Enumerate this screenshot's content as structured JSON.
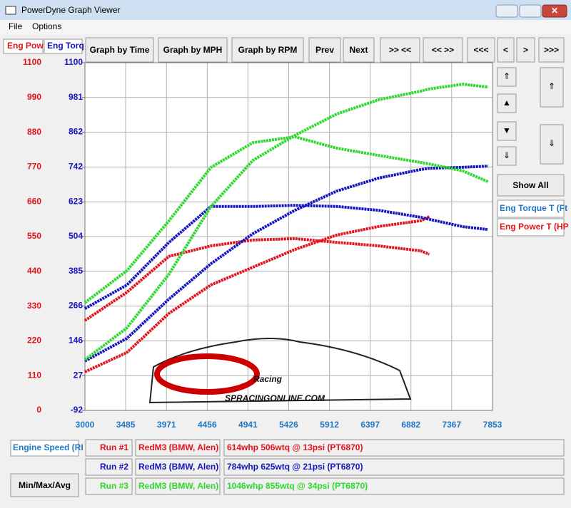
{
  "window_title": "PowerDyne Graph Viewer",
  "menu": [
    "File",
    "Options"
  ],
  "toolbar": [
    "Graph by Time",
    "Graph by MPH",
    "Graph by RPM",
    "Prev",
    "Next",
    ">> <<",
    "<< >>",
    "<<<",
    "<",
    ">",
    ">>>"
  ],
  "axis_tabs": [
    "Eng Pow",
    "Eng Torq"
  ],
  "side_panel": {
    "show_all": "Show All",
    "channels": [
      "Eng Torque T (Ft",
      "Eng Power T (HP"
    ]
  },
  "bottom": {
    "x_channel": "Engine Speed (RI",
    "min_max_button": "Min/Max/Avg",
    "runs": [
      {
        "label": "Run #1",
        "car": "RedM3 (BMW, Alen)",
        "result": "614whp 506wtq @ 13psi (PT6870)",
        "color": "#e3131b"
      },
      {
        "label": "Run #2",
        "car": "RedM3 (BMW, Alen)",
        "result": "784whp 625wtq @ 21psi (PT6870)",
        "color": "#1515c0"
      },
      {
        "label": "Run #3",
        "car": "RedM3 (BMW, Alen)",
        "result": "1046whp 855wtq @ 34psi (PT6870)",
        "color": "#2ed82e"
      }
    ]
  },
  "watermark": [
    "Racing",
    "SPRACINGONLINE.COM"
  ],
  "chart_data": {
    "type": "line",
    "x": [
      3000,
      3500,
      4000,
      4500,
      5000,
      5500,
      6000,
      6500,
      7000,
      7100,
      7500,
      7800
    ],
    "xlim": [
      3000,
      7853
    ],
    "xticks": [
      3000,
      3485,
      3971,
      4456,
      4941,
      5426,
      5912,
      6397,
      6882,
      7367,
      7853
    ],
    "ylim": [
      0,
      1100
    ],
    "yticks": [
      0,
      110,
      220,
      330,
      440,
      550,
      660,
      770,
      880,
      990,
      1100
    ],
    "y2lim": [
      -92,
      1100
    ],
    "y2ticks": [
      -92,
      27,
      146,
      266,
      385,
      504,
      623,
      742,
      862,
      981,
      1100
    ],
    "grid": true,
    "series": [
      {
        "color": "#e3131b",
        "values": [
          122,
          183,
          307,
          397,
          453,
          509,
          555,
          582,
          600,
          613,
          null,
          null
        ]
      },
      {
        "color": "#e3131b",
        "axis": "y2",
        "values": [
          216,
          313,
          436,
          472,
          492,
          497,
          484,
          472,
          455,
          443,
          null,
          null
        ]
      },
      {
        "color": "#1515c0",
        "values": [
          156,
          228,
          352,
          464,
          559,
          633,
          694,
          735,
          762,
          766,
          769,
          773
        ]
      },
      {
        "color": "#1515c0",
        "axis": "y2",
        "values": [
          257,
          338,
          484,
          607,
          607,
          611,
          607,
          594,
          570,
          563,
          538,
          528
        ]
      },
      {
        "color": "#2ed82e",
        "values": [
          160,
          261,
          431,
          645,
          791,
          870,
          938,
          983,
          1010,
          1017,
          1032,
          1023
        ]
      },
      {
        "color": "#2ed82e",
        "axis": "y2",
        "values": [
          277,
          387,
          558,
          741,
          826,
          846,
          807,
          782,
          758,
          753,
          729,
          692
        ]
      }
    ]
  }
}
